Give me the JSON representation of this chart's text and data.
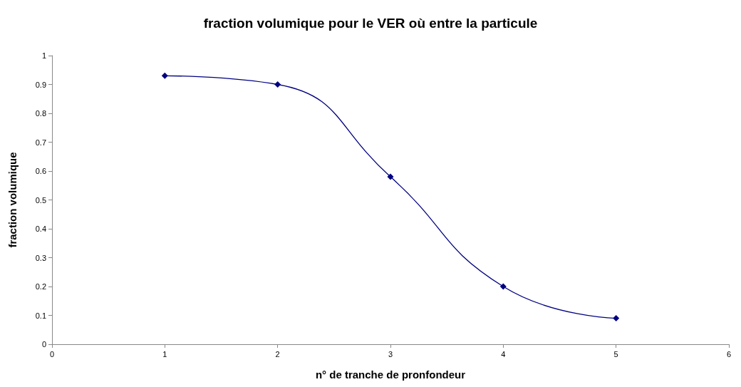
{
  "chart_data": {
    "type": "line",
    "title": "fraction volumique pour le VER où entre la particule",
    "xlabel": "n° de tranche de pronfondeur",
    "ylabel": "fraction volumique",
    "x": [
      1,
      2,
      3,
      4,
      5
    ],
    "series": [
      {
        "color": "#000080",
        "values": [
          0.93,
          0.9,
          0.58,
          0.2,
          0.09
        ]
      }
    ],
    "xlim": [
      0,
      6
    ],
    "xticks": [
      0,
      1,
      2,
      3,
      4,
      5,
      6
    ],
    "ylim": [
      0,
      1
    ],
    "yticks": [
      0,
      0.1,
      0.2,
      0.3,
      0.4,
      0.5,
      0.6,
      0.7,
      0.8,
      0.9,
      1
    ],
    "grid": false,
    "marker": "diamond",
    "line_style": "solid"
  }
}
